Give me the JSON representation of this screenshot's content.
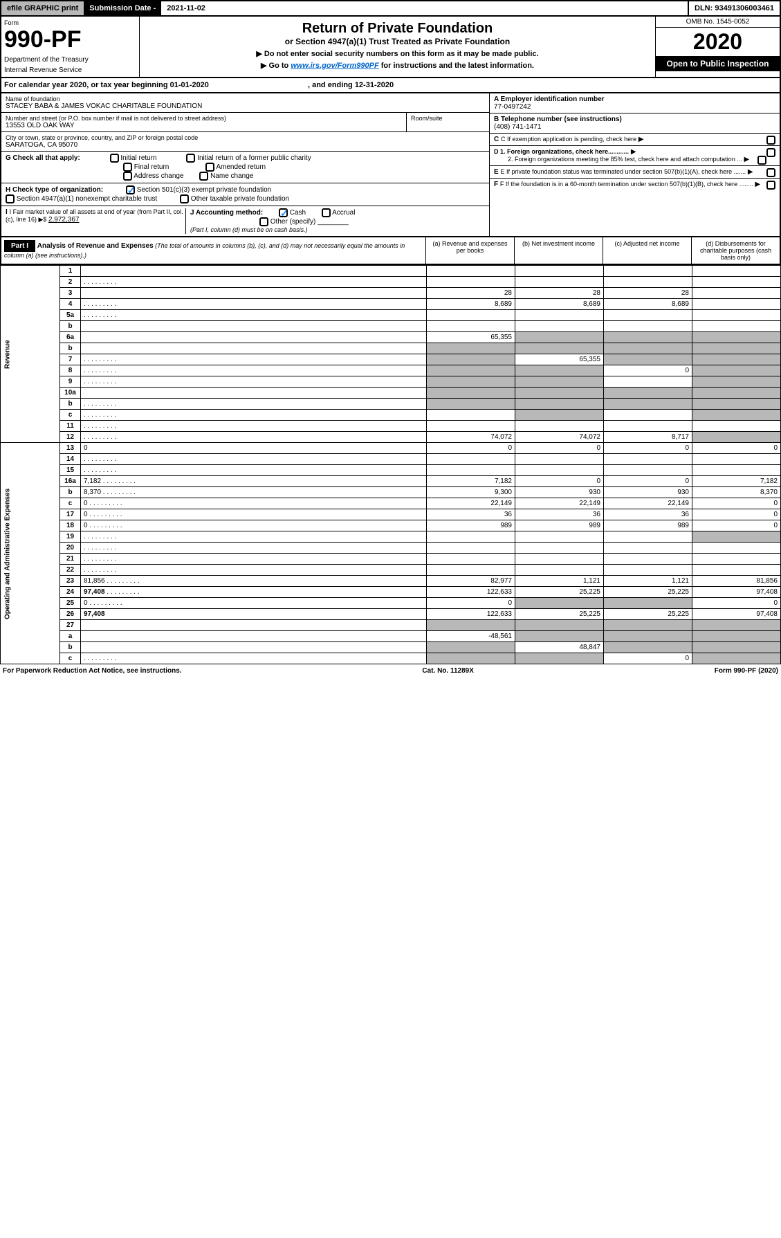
{
  "top": {
    "efile": "efile GRAPHIC print",
    "sub_label": "Submission Date - ",
    "sub_date": "2021-11-02",
    "dln": "DLN: 93491306003461"
  },
  "header": {
    "form_label": "Form",
    "form_no": "990-PF",
    "dept": "Department of the Treasury",
    "irs": "Internal Revenue Service",
    "title": "Return of Private Foundation",
    "subtitle": "or Section 4947(a)(1) Trust Treated as Private Foundation",
    "instr1": "▶ Do not enter social security numbers on this form as it may be made public.",
    "instr2": "▶ Go to ",
    "link": "www.irs.gov/Form990PF",
    "instr3": " for instructions and the latest information.",
    "omb": "OMB No. 1545-0052",
    "year": "2020",
    "open": "Open to Public Inspection"
  },
  "cal": {
    "text": "For calendar year 2020, or tax year beginning 01-01-2020",
    "ending": ", and ending 12-31-2020"
  },
  "info": {
    "name_label": "Name of foundation",
    "name": "STACEY BABA & JAMES VOKAC CHARITABLE FOUNDATION",
    "addr_label": "Number and street (or P.O. box number if mail is not delivered to street address)",
    "addr": "13553 OLD OAK WAY",
    "room_label": "Room/suite",
    "city_label": "City or town, state or province, country, and ZIP or foreign postal code",
    "city": "SARATOGA, CA  95070",
    "ein_label": "A Employer identification number",
    "ein": "77-0497242",
    "phone_label": "B Telephone number (see instructions)",
    "phone": "(408) 741-1471",
    "c_label": "C If exemption application is pending, check here",
    "d1": "D 1. Foreign organizations, check here............",
    "d2": "2. Foreign organizations meeting the 85% test, check here and attach computation ...",
    "e_label": "E  If private foundation status was terminated under section 507(b)(1)(A), check here .......",
    "f_label": "F  If the foundation is in a 60-month termination under section 507(b)(1)(B), check here ........",
    "g_label": "G Check all that apply:",
    "g_opts": [
      "Initial return",
      "Initial return of a former public charity",
      "Final return",
      "Amended return",
      "Address change",
      "Name change"
    ],
    "h_label": "H Check type of organization:",
    "h_501": "Section 501(c)(3) exempt private foundation",
    "h_4947": "Section 4947(a)(1) nonexempt charitable trust",
    "h_other": "Other taxable private foundation",
    "i_label": "I Fair market value of all assets at end of year (from Part II, col. (c), line 16) ▶$ ",
    "i_val": "2,972,367",
    "j_label": "J Accounting method:",
    "j_cash": "Cash",
    "j_accrual": "Accrual",
    "j_other": "Other (specify)",
    "j_note": "(Part I, column (d) must be on cash basis.)"
  },
  "part1": {
    "label": "Part I",
    "title": "Analysis of Revenue and Expenses",
    "note": " (The total of amounts in columns (b), (c), and (d) may not necessarily equal the amounts in column (a) (see instructions).)",
    "cols": [
      "(a)    Revenue and expenses per books",
      "(b)   Net investment income",
      "(c)   Adjusted net income",
      "(d)   Disbursements for charitable purposes (cash basis only)"
    ]
  },
  "revenue_label": "Revenue",
  "expenses_label": "Operating and Administrative Expenses",
  "rows": [
    {
      "n": "1",
      "d": "",
      "a": "",
      "b": "",
      "c": ""
    },
    {
      "n": "2",
      "d": "",
      "a": "",
      "b": "",
      "c": "",
      "dots": true
    },
    {
      "n": "3",
      "d": "",
      "a": "28",
      "b": "28",
      "c": "28"
    },
    {
      "n": "4",
      "d": "",
      "a": "8,689",
      "b": "8,689",
      "c": "8,689",
      "dots": true
    },
    {
      "n": "5a",
      "d": "",
      "a": "",
      "b": "",
      "c": "",
      "dots": true
    },
    {
      "n": "b",
      "d": "",
      "a": "",
      "b": "",
      "c": ""
    },
    {
      "n": "6a",
      "d": "",
      "a": "65,355",
      "b": "",
      "c": "",
      "shade_bcd": true
    },
    {
      "n": "b",
      "d": "",
      "a": "",
      "b": "",
      "c": "",
      "shade_all": true
    },
    {
      "n": "7",
      "d": "",
      "a": "",
      "b": "65,355",
      "c": "",
      "dots": true,
      "shade_a": true,
      "shade_cd": true
    },
    {
      "n": "8",
      "d": "",
      "a": "",
      "b": "",
      "c": "0",
      "dots": true,
      "shade_ab": true,
      "shade_d": true
    },
    {
      "n": "9",
      "d": "",
      "a": "",
      "b": "",
      "c": "",
      "dots": true,
      "shade_ab": true,
      "shade_d": true
    },
    {
      "n": "10a",
      "d": "",
      "a": "",
      "b": "",
      "c": "",
      "shade_all": true
    },
    {
      "n": "b",
      "d": "",
      "a": "",
      "b": "",
      "c": "",
      "dots": true,
      "shade_all": true
    },
    {
      "n": "c",
      "d": "",
      "a": "",
      "b": "",
      "c": "",
      "dots": true,
      "shade_b": true,
      "shade_d": true
    },
    {
      "n": "11",
      "d": "",
      "a": "",
      "b": "",
      "c": "",
      "dots": true
    },
    {
      "n": "12",
      "d": "",
      "a": "74,072",
      "b": "74,072",
      "c": "8,717",
      "bold": true,
      "dots": true,
      "shade_d": true
    }
  ],
  "exp_rows": [
    {
      "n": "13",
      "d": "0",
      "a": "0",
      "b": "0",
      "c": "0"
    },
    {
      "n": "14",
      "d": "",
      "a": "",
      "b": "",
      "c": "",
      "dots": true
    },
    {
      "n": "15",
      "d": "",
      "a": "",
      "b": "",
      "c": "",
      "dots": true
    },
    {
      "n": "16a",
      "d": "7,182",
      "a": "7,182",
      "b": "0",
      "c": "0",
      "dots": true
    },
    {
      "n": "b",
      "d": "8,370",
      "a": "9,300",
      "b": "930",
      "c": "930",
      "dots": true
    },
    {
      "n": "c",
      "d": "0",
      "a": "22,149",
      "b": "22,149",
      "c": "22,149",
      "dots": true
    },
    {
      "n": "17",
      "d": "0",
      "a": "36",
      "b": "36",
      "c": "36",
      "dots": true
    },
    {
      "n": "18",
      "d": "0",
      "a": "989",
      "b": "989",
      "c": "989",
      "dots": true
    },
    {
      "n": "19",
      "d": "",
      "a": "",
      "b": "",
      "c": "",
      "dots": true,
      "shade_d": true
    },
    {
      "n": "20",
      "d": "",
      "a": "",
      "b": "",
      "c": "",
      "dots": true
    },
    {
      "n": "21",
      "d": "",
      "a": "",
      "b": "",
      "c": "",
      "dots": true
    },
    {
      "n": "22",
      "d": "",
      "a": "",
      "b": "",
      "c": "",
      "dots": true
    },
    {
      "n": "23",
      "d": "81,856",
      "a": "82,977",
      "b": "1,121",
      "c": "1,121",
      "dots": true
    },
    {
      "n": "24",
      "d": "97,408",
      "a": "122,633",
      "b": "25,225",
      "c": "25,225",
      "bold": true,
      "dots": true
    },
    {
      "n": "25",
      "d": "0",
      "a": "0",
      "b": "",
      "c": "",
      "dots": true,
      "shade_bc": true
    },
    {
      "n": "26",
      "d": "97,408",
      "a": "122,633",
      "b": "25,225",
      "c": "25,225",
      "bold": true
    },
    {
      "n": "27",
      "d": "",
      "a": "",
      "b": "",
      "c": "",
      "shade_all": true
    },
    {
      "n": "a",
      "d": "",
      "a": "-48,561",
      "b": "",
      "c": "",
      "bold": true,
      "shade_bcd": true
    },
    {
      "n": "b",
      "d": "",
      "a": "",
      "b": "48,847",
      "c": "",
      "bold": true,
      "shade_a": true,
      "shade_cd": true
    },
    {
      "n": "c",
      "d": "",
      "a": "",
      "b": "",
      "c": "0",
      "bold": true,
      "dots": true,
      "shade_ab": true,
      "shade_d": true
    }
  ],
  "footer": {
    "left": "For Paperwork Reduction Act Notice, see instructions.",
    "mid": "Cat. No. 11289X",
    "right": "Form 990-PF (2020)"
  }
}
